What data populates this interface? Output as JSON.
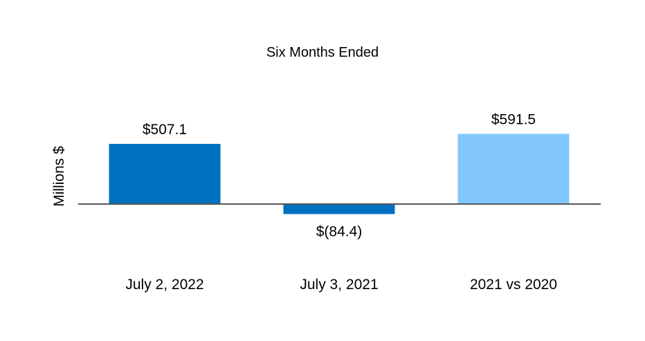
{
  "chart_data": {
    "type": "bar",
    "title": "Six Months Ended",
    "xlabel": "",
    "ylabel": "Millions $",
    "categories": [
      "July 2, 2022",
      "July 3, 2021",
      "2021 vs 2020"
    ],
    "values": [
      507.1,
      -84.4,
      591.5
    ],
    "value_labels": [
      "$507.1",
      "$(84.4)",
      "$591.5"
    ],
    "colors": [
      "#0070c0",
      "#0070c0",
      "#82c8ff"
    ],
    "baseline_color": "#555555",
    "grid": false,
    "legend": "none"
  }
}
